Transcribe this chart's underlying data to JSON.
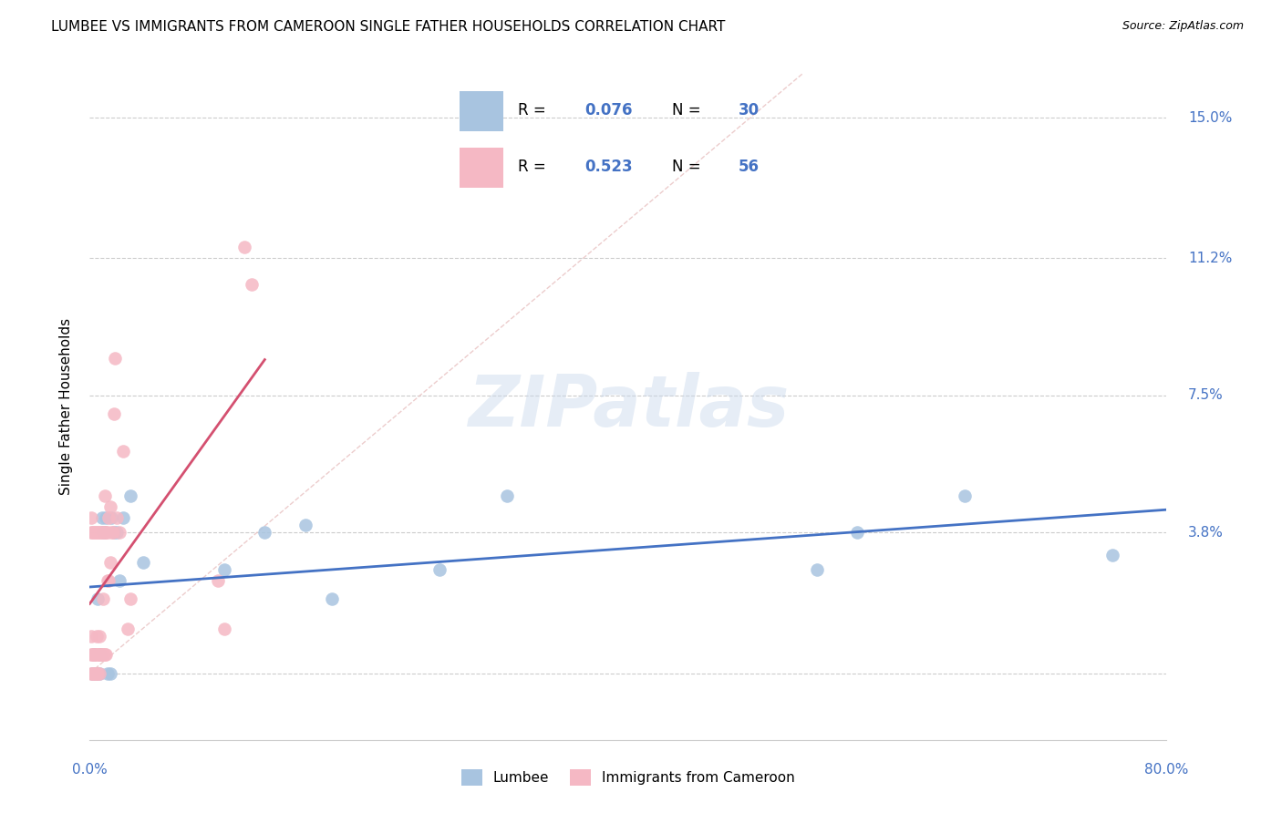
{
  "title": "LUMBEE VS IMMIGRANTS FROM CAMEROON SINGLE FATHER HOUSEHOLDS CORRELATION CHART",
  "source": "Source: ZipAtlas.com",
  "ylabel": "Single Father Households",
  "xlim": [
    0.0,
    0.8
  ],
  "ylim": [
    -0.018,
    0.162
  ],
  "yticks": [
    0.0,
    0.038,
    0.075,
    0.112,
    0.15
  ],
  "ytick_labels": [
    "",
    "3.8%",
    "7.5%",
    "11.2%",
    "15.0%"
  ],
  "xticks": [
    0.0,
    0.2,
    0.4,
    0.6,
    0.8
  ],
  "xtick_labels": [
    "0.0%",
    "",
    "",
    "",
    "80.0%"
  ],
  "grid_color": "#cccccc",
  "watermark": "ZIPatlas",
  "lumbee_color": "#a8c4e0",
  "cameroon_color": "#f5b8c4",
  "lumbee_line_color": "#4472c4",
  "cameroon_line_color": "#d45070",
  "lumbee_R": "0.076",
  "lumbee_N": "30",
  "cameroon_R": "0.523",
  "cameroon_N": "56",
  "legend_label_1": "Lumbee",
  "legend_label_2": "Immigrants from Cameroon",
  "lumbee_x": [
    0.002,
    0.003,
    0.004,
    0.005,
    0.006,
    0.007,
    0.008,
    0.009,
    0.01,
    0.011,
    0.012,
    0.013,
    0.015,
    0.016,
    0.018,
    0.02,
    0.022,
    0.025,
    0.03,
    0.04,
    0.1,
    0.13,
    0.16,
    0.18,
    0.26,
    0.31,
    0.54,
    0.57,
    0.65,
    0.76
  ],
  "lumbee_y": [
    0.0,
    0.005,
    0.0,
    0.0,
    0.02,
    0.0,
    0.005,
    0.042,
    0.038,
    0.038,
    0.042,
    0.0,
    0.0,
    0.042,
    0.038,
    0.038,
    0.025,
    0.042,
    0.048,
    0.03,
    0.028,
    0.038,
    0.04,
    0.02,
    0.028,
    0.048,
    0.028,
    0.038,
    0.048,
    0.032
  ],
  "cameroon_x": [
    0.001,
    0.001,
    0.001,
    0.001,
    0.001,
    0.002,
    0.002,
    0.002,
    0.003,
    0.003,
    0.003,
    0.004,
    0.004,
    0.004,
    0.005,
    0.005,
    0.005,
    0.005,
    0.006,
    0.006,
    0.006,
    0.007,
    0.007,
    0.007,
    0.007,
    0.008,
    0.008,
    0.009,
    0.009,
    0.01,
    0.01,
    0.01,
    0.011,
    0.011,
    0.011,
    0.012,
    0.012,
    0.013,
    0.013,
    0.014,
    0.014,
    0.015,
    0.015,
    0.016,
    0.017,
    0.018,
    0.019,
    0.02,
    0.022,
    0.025,
    0.028,
    0.03,
    0.095,
    0.1,
    0.115,
    0.12
  ],
  "cameroon_y": [
    0.0,
    0.005,
    0.01,
    0.038,
    0.042,
    0.0,
    0.005,
    0.038,
    0.0,
    0.005,
    0.038,
    0.0,
    0.005,
    0.038,
    0.0,
    0.005,
    0.01,
    0.038,
    0.0,
    0.005,
    0.038,
    0.0,
    0.005,
    0.01,
    0.038,
    0.005,
    0.038,
    0.005,
    0.038,
    0.005,
    0.02,
    0.038,
    0.005,
    0.038,
    0.048,
    0.005,
    0.038,
    0.025,
    0.038,
    0.025,
    0.042,
    0.03,
    0.045,
    0.038,
    0.038,
    0.07,
    0.085,
    0.042,
    0.038,
    0.06,
    0.012,
    0.02,
    0.025,
    0.012,
    0.115,
    0.105
  ]
}
